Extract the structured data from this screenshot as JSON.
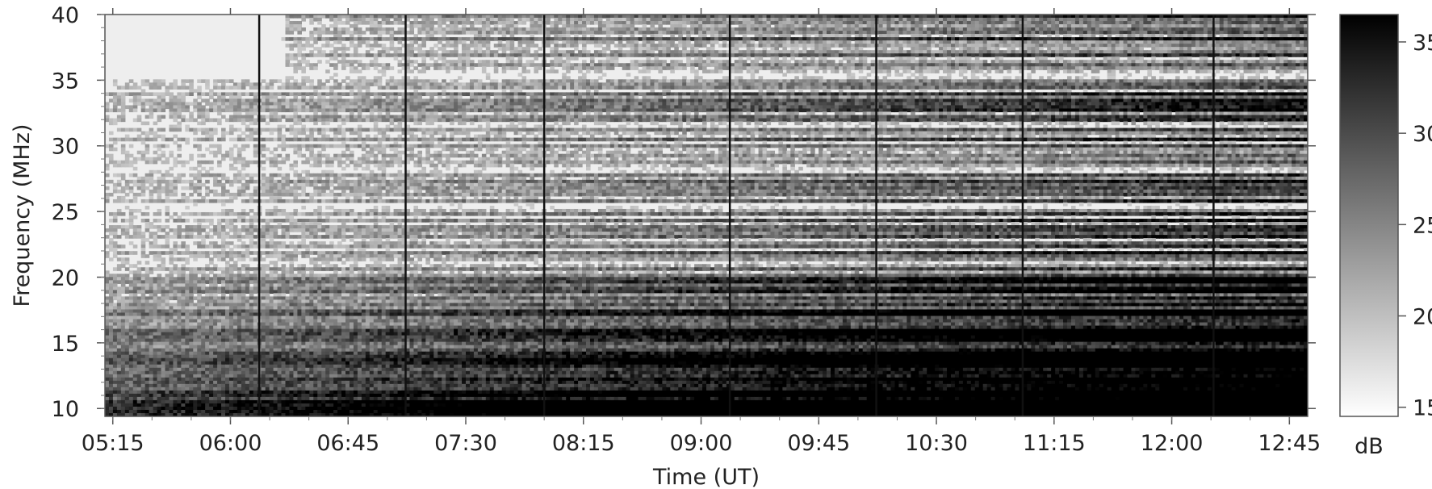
{
  "chart_data": {
    "type": "heatmap",
    "title": "",
    "xlabel": "Time (UT)",
    "ylabel": "Frequency (MHz)",
    "x_ticks": [
      "05:15",
      "06:00",
      "06:45",
      "07:30",
      "08:15",
      "09:00",
      "09:45",
      "10:30",
      "11:15",
      "12:00",
      "12:45"
    ],
    "y_ticks": [
      10,
      15,
      20,
      25,
      30,
      35,
      40
    ],
    "xlim": [
      "05:12",
      "12:52"
    ],
    "ylim": [
      9.4,
      40
    ],
    "colorbar": {
      "label": "dB",
      "ticks": [
        15,
        20,
        25,
        30,
        35
      ],
      "range": [
        14.5,
        36.5
      ],
      "colormap": "white-to-black"
    },
    "vertical_markers_ut": [
      "06:11",
      "07:07",
      "08:00",
      "09:11",
      "10:07",
      "11:03",
      "12:16"
    ],
    "description_free": true
  }
}
